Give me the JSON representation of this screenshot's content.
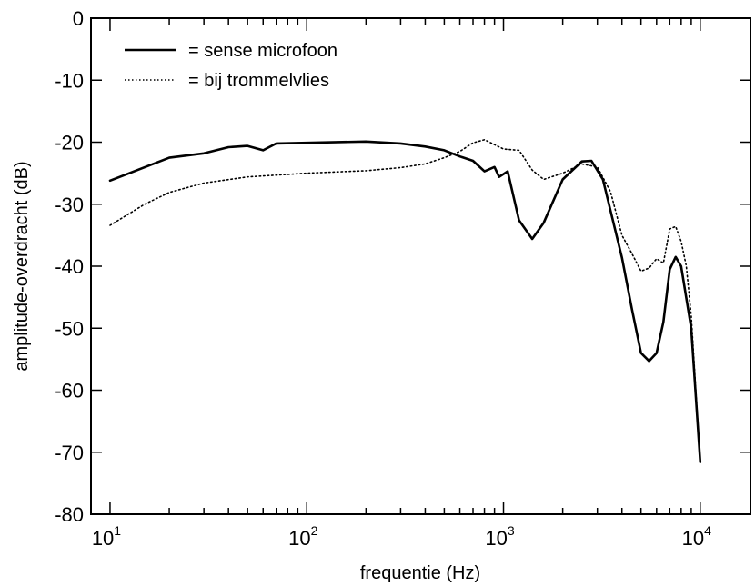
{
  "chart_data": {
    "type": "line",
    "title": "",
    "xlabel": "frequentie (Hz)",
    "ylabel": "amplitude-overdracht (dB)",
    "xscale": "log",
    "xlim": [
      8,
      18000
    ],
    "ylim": [
      -80,
      0
    ],
    "x_ticks": [
      {
        "value": 10,
        "base": "10",
        "exp": "1"
      },
      {
        "value": 100,
        "base": "10",
        "exp": "2"
      },
      {
        "value": 1000,
        "base": "10",
        "exp": "3"
      },
      {
        "value": 10000,
        "base": "10",
        "exp": "4"
      }
    ],
    "y_ticks": [
      {
        "value": 0,
        "label": "0"
      },
      {
        "value": -10,
        "label": "-10"
      },
      {
        "value": -20,
        "label": "-20"
      },
      {
        "value": -30,
        "label": "-30"
      },
      {
        "value": -40,
        "label": "-40"
      },
      {
        "value": -50,
        "label": "-50"
      },
      {
        "value": -60,
        "label": "-60"
      },
      {
        "value": -70,
        "label": "-70"
      },
      {
        "value": -80,
        "label": "-80"
      }
    ],
    "grid": false,
    "legend_position": "top-left",
    "series": [
      {
        "name": "= sense microfoon",
        "style": "solid",
        "color": "#000000",
        "points": [
          [
            10,
            -26.2
          ],
          [
            20,
            -22.5
          ],
          [
            30,
            -21.8
          ],
          [
            40,
            -20.8
          ],
          [
            50,
            -20.6
          ],
          [
            60,
            -21.3
          ],
          [
            70,
            -20.2
          ],
          [
            100,
            -20.1
          ],
          [
            200,
            -19.9
          ],
          [
            300,
            -20.2
          ],
          [
            400,
            -20.7
          ],
          [
            500,
            -21.3
          ],
          [
            600,
            -22.3
          ],
          [
            700,
            -23.0
          ],
          [
            800,
            -24.7
          ],
          [
            900,
            -24.0
          ],
          [
            950,
            -25.6
          ],
          [
            1050,
            -24.7
          ],
          [
            1200,
            -32.6
          ],
          [
            1400,
            -35.6
          ],
          [
            1600,
            -33.0
          ],
          [
            2000,
            -26.0
          ],
          [
            2500,
            -23.1
          ],
          [
            2800,
            -23.0
          ],
          [
            3200,
            -26.0
          ],
          [
            4000,
            -38.6
          ],
          [
            4500,
            -47.0
          ],
          [
            5000,
            -54.0
          ],
          [
            5500,
            -55.3
          ],
          [
            6000,
            -54.0
          ],
          [
            6500,
            -49.0
          ],
          [
            7000,
            -40.5
          ],
          [
            7500,
            -38.5
          ],
          [
            8000,
            -40.0
          ],
          [
            9000,
            -50.0
          ],
          [
            10000,
            -71.6
          ]
        ]
      },
      {
        "name": "= bij trommelvlies",
        "style": "dotted",
        "color": "#000000",
        "points": [
          [
            10,
            -33.4
          ],
          [
            15,
            -30.0
          ],
          [
            20,
            -28.1
          ],
          [
            30,
            -26.6
          ],
          [
            50,
            -25.6
          ],
          [
            100,
            -25.0
          ],
          [
            200,
            -24.6
          ],
          [
            300,
            -24.1
          ],
          [
            400,
            -23.5
          ],
          [
            500,
            -22.5
          ],
          [
            600,
            -21.5
          ],
          [
            700,
            -20.1
          ],
          [
            800,
            -19.6
          ],
          [
            900,
            -20.4
          ],
          [
            1000,
            -21.1
          ],
          [
            1200,
            -21.3
          ],
          [
            1400,
            -24.5
          ],
          [
            1600,
            -26.0
          ],
          [
            2000,
            -25.0
          ],
          [
            2500,
            -23.5
          ],
          [
            3000,
            -24.0
          ],
          [
            3500,
            -28.0
          ],
          [
            4000,
            -35.0
          ],
          [
            4500,
            -38.0
          ],
          [
            5000,
            -40.8
          ],
          [
            5500,
            -40.3
          ],
          [
            6000,
            -38.8
          ],
          [
            6500,
            -39.5
          ],
          [
            7000,
            -34.0
          ],
          [
            7500,
            -33.6
          ],
          [
            8000,
            -36.0
          ],
          [
            8500,
            -40.0
          ],
          [
            9000,
            -48.0
          ],
          [
            10000,
            -71.6
          ]
        ]
      }
    ]
  }
}
